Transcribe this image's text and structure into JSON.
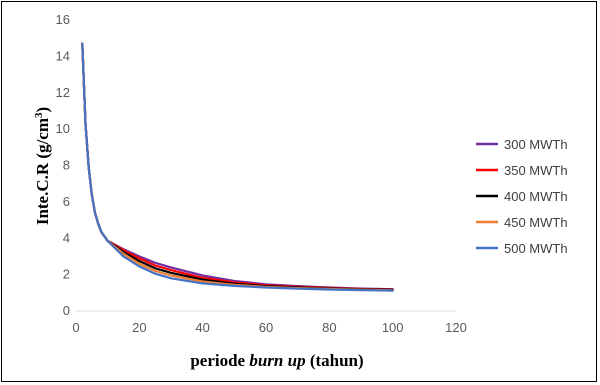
{
  "chart_data": {
    "type": "line",
    "xlabel_prefix": "periode ",
    "xlabel_italic": "burn up",
    "xlabel_suffix": " (tahun)",
    "ylabel_main": "Inte.C.R (g/cm",
    "ylabel_sup": "3",
    "ylabel_end": ")",
    "xlim": [
      0,
      120
    ],
    "ylim": [
      0,
      16
    ],
    "xticks": [
      0,
      20,
      40,
      60,
      80,
      100,
      120
    ],
    "yticks": [
      0,
      2,
      4,
      6,
      8,
      10,
      12,
      14,
      16
    ],
    "legend_position": "right",
    "grid": false,
    "series": [
      {
        "name": "300 MWTh",
        "color": "#7030A0",
        "x": [
          2,
          3,
          4,
          5,
          6,
          7,
          8,
          10,
          15,
          20,
          25,
          30,
          40,
          50,
          60,
          70,
          80,
          90,
          100
        ],
        "y": [
          14.7,
          10.3,
          7.9,
          6.4,
          5.4,
          4.8,
          4.35,
          3.85,
          3.4,
          3.0,
          2.65,
          2.4,
          1.95,
          1.65,
          1.47,
          1.37,
          1.29,
          1.23,
          1.2
        ]
      },
      {
        "name": "350 MWTh",
        "color": "#FF0000",
        "x": [
          2,
          3,
          4,
          5,
          6,
          7,
          8,
          10,
          15,
          20,
          25,
          30,
          40,
          50,
          60,
          70,
          80,
          90,
          100
        ],
        "y": [
          14.7,
          10.3,
          7.9,
          6.4,
          5.4,
          4.8,
          4.35,
          3.85,
          3.35,
          2.9,
          2.5,
          2.25,
          1.82,
          1.57,
          1.42,
          1.33,
          1.26,
          1.21,
          1.18
        ]
      },
      {
        "name": "400 MWTh",
        "color": "#000000",
        "x": [
          2,
          3,
          4,
          5,
          6,
          7,
          8,
          10,
          15,
          20,
          25,
          30,
          40,
          50,
          60,
          70,
          80,
          90,
          100
        ],
        "y": [
          14.7,
          10.3,
          7.9,
          6.4,
          5.4,
          4.8,
          4.35,
          3.85,
          3.25,
          2.75,
          2.35,
          2.1,
          1.72,
          1.5,
          1.37,
          1.29,
          1.23,
          1.19,
          1.16
        ]
      },
      {
        "name": "450 MWTh",
        "color": "#ED7D31",
        "x": [
          2,
          3,
          4,
          5,
          6,
          7,
          8,
          10,
          15,
          20,
          25,
          30,
          40,
          50,
          60,
          70,
          80,
          90,
          100
        ],
        "y": [
          14.7,
          10.3,
          7.9,
          6.4,
          5.4,
          4.8,
          4.35,
          3.85,
          3.15,
          2.6,
          2.2,
          1.95,
          1.62,
          1.44,
          1.33,
          1.26,
          1.21,
          1.17,
          1.14
        ]
      },
      {
        "name": "500 MWTh",
        "color": "#4472C4",
        "x": [
          2,
          3,
          4,
          5,
          6,
          7,
          8,
          10,
          15,
          20,
          25,
          30,
          40,
          50,
          60,
          70,
          80,
          90,
          100
        ],
        "y": [
          14.7,
          10.3,
          7.9,
          6.4,
          5.4,
          4.8,
          4.35,
          3.85,
          3.0,
          2.45,
          2.05,
          1.8,
          1.52,
          1.38,
          1.29,
          1.23,
          1.18,
          1.15,
          1.12
        ]
      }
    ]
  }
}
